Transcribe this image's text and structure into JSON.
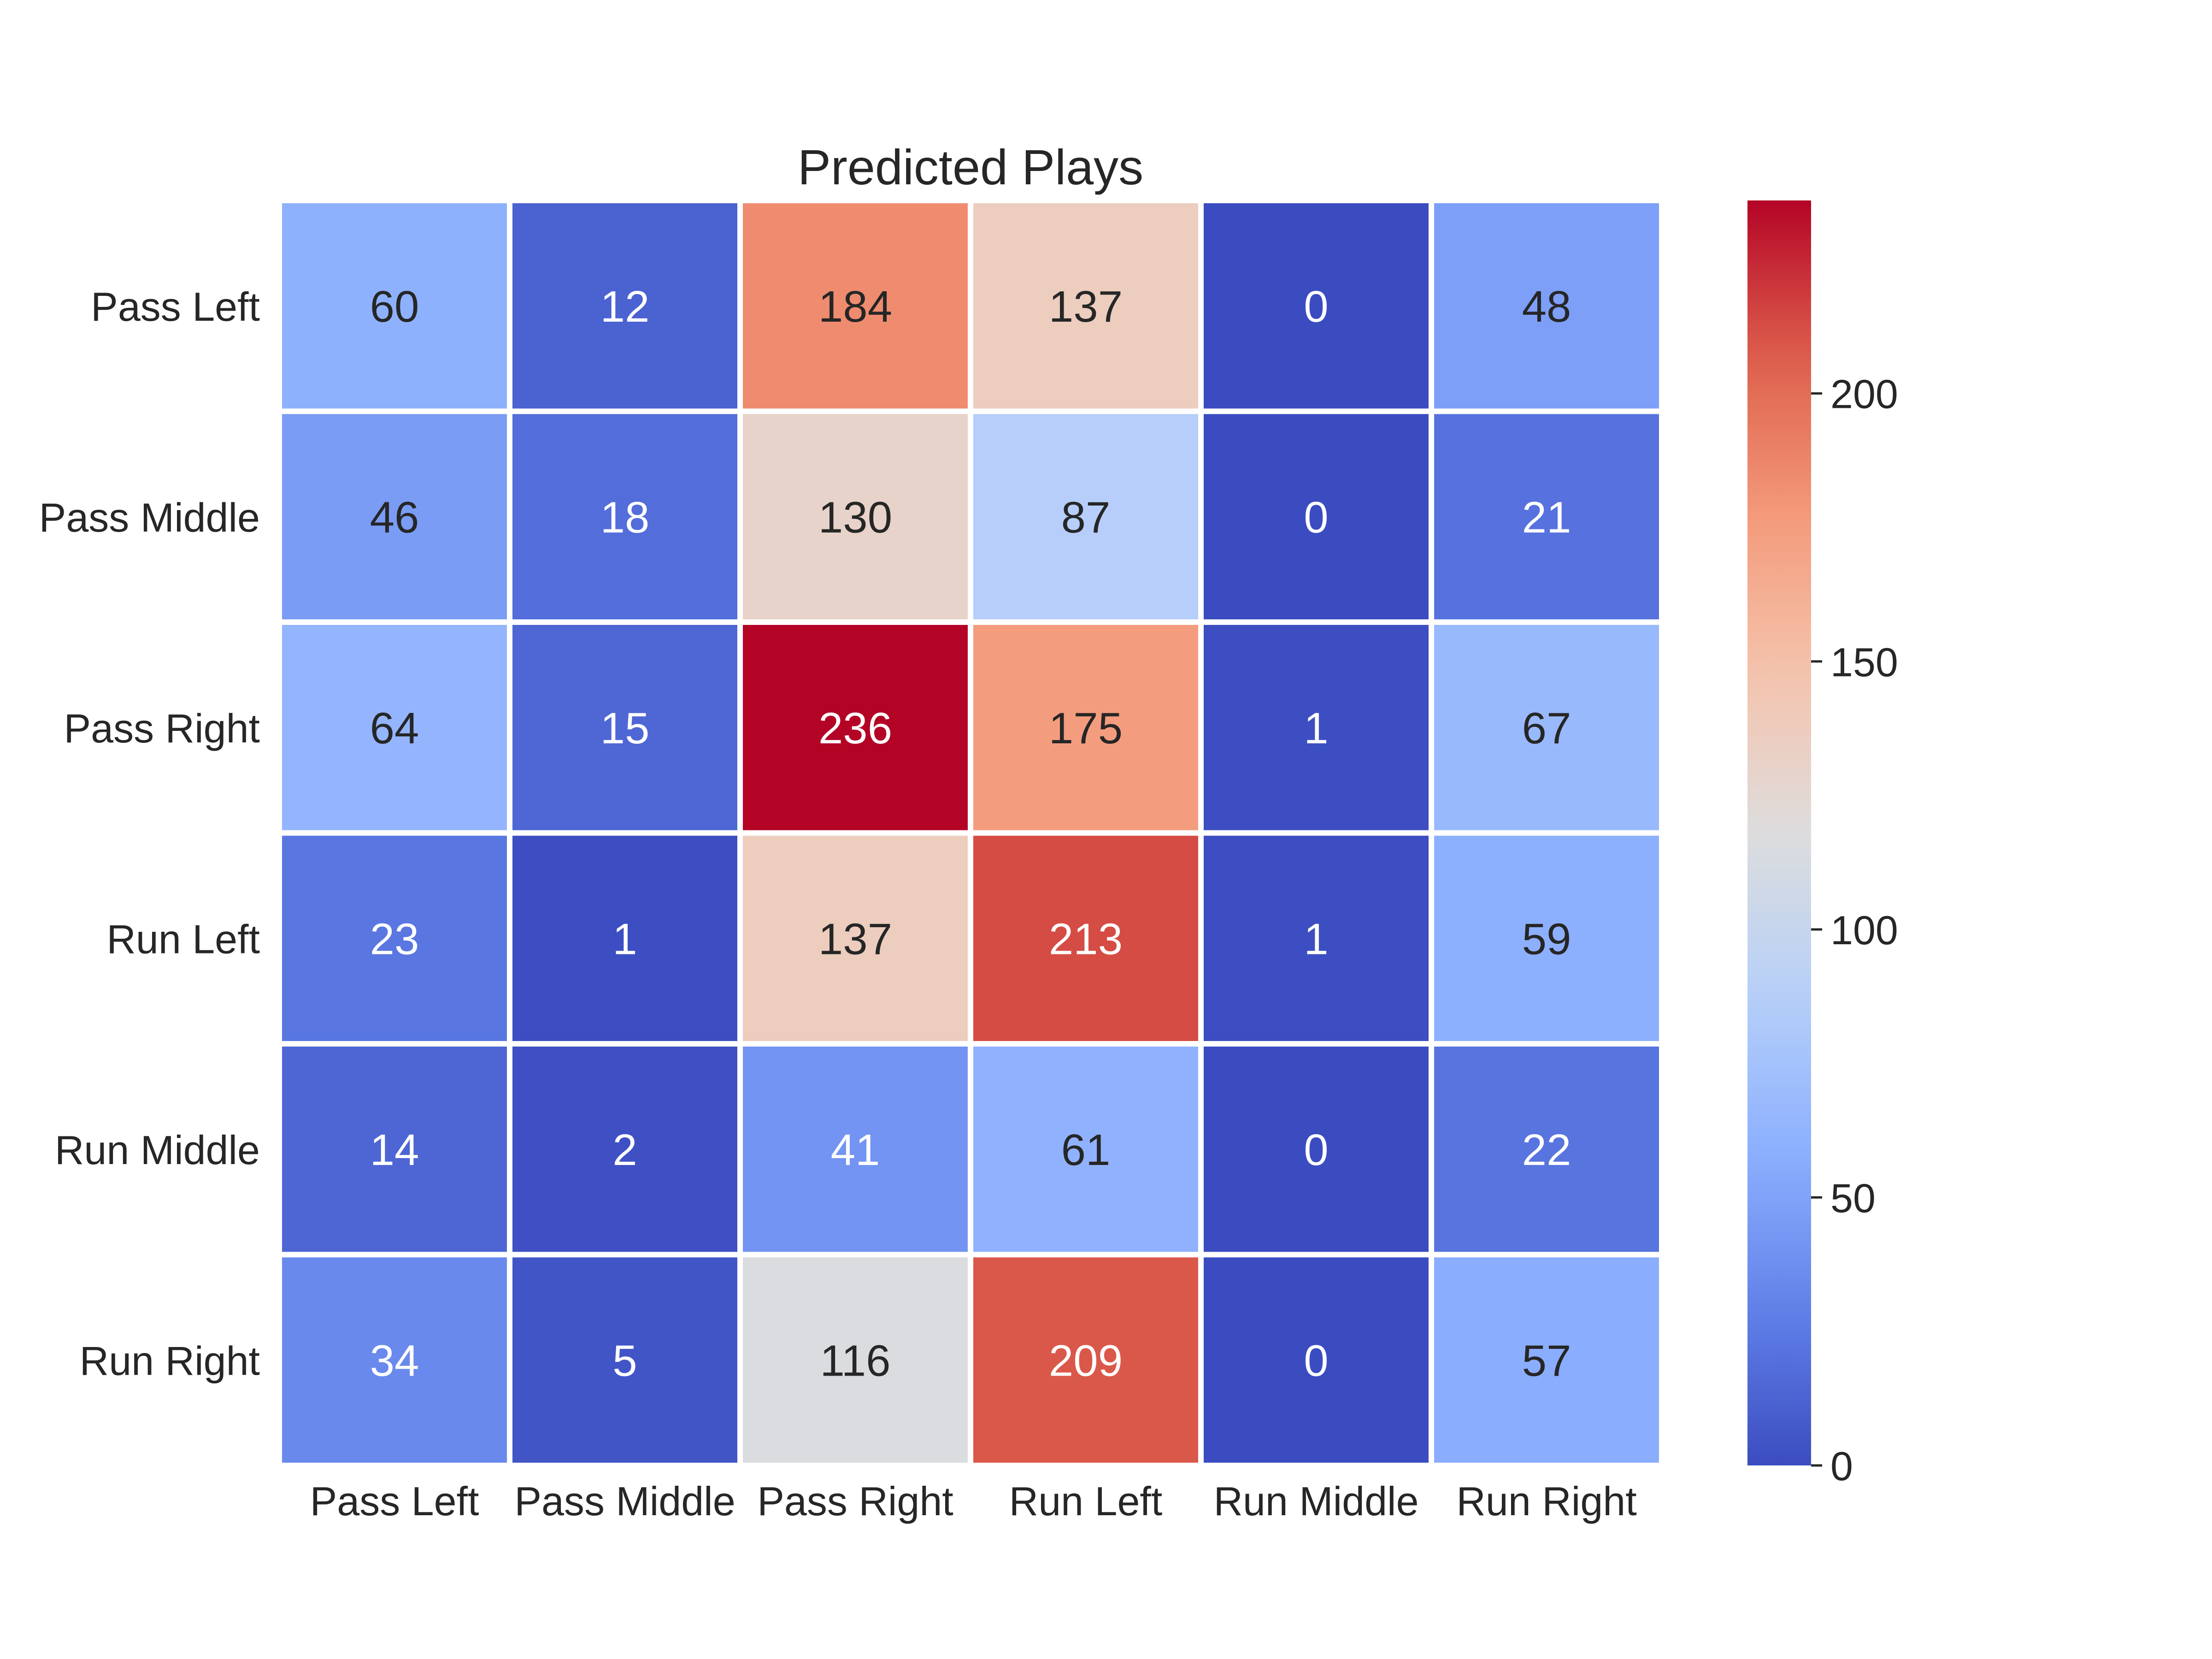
{
  "chart_data": {
    "type": "heatmap",
    "title": "Predicted Plays",
    "xlabel": "",
    "ylabel": "",
    "x_categories": [
      "Pass Left",
      "Pass Middle",
      "Pass Right",
      "Run Left",
      "Run Middle",
      "Run Right"
    ],
    "y_categories": [
      "Pass Left",
      "Pass Middle",
      "Pass Right",
      "Run Left",
      "Run Middle",
      "Run Right"
    ],
    "values": [
      [
        60,
        12,
        184,
        137,
        0,
        48
      ],
      [
        46,
        18,
        130,
        87,
        0,
        21
      ],
      [
        64,
        15,
        236,
        175,
        1,
        67
      ],
      [
        23,
        1,
        137,
        213,
        1,
        59
      ],
      [
        14,
        2,
        41,
        61,
        0,
        22
      ],
      [
        34,
        5,
        116,
        209,
        0,
        57
      ]
    ],
    "colormap": "coolwarm",
    "vmin": 0,
    "vmax": 236,
    "colorbar_ticks": [
      0,
      50,
      100,
      150,
      200
    ],
    "annotations": true,
    "grid": false
  }
}
